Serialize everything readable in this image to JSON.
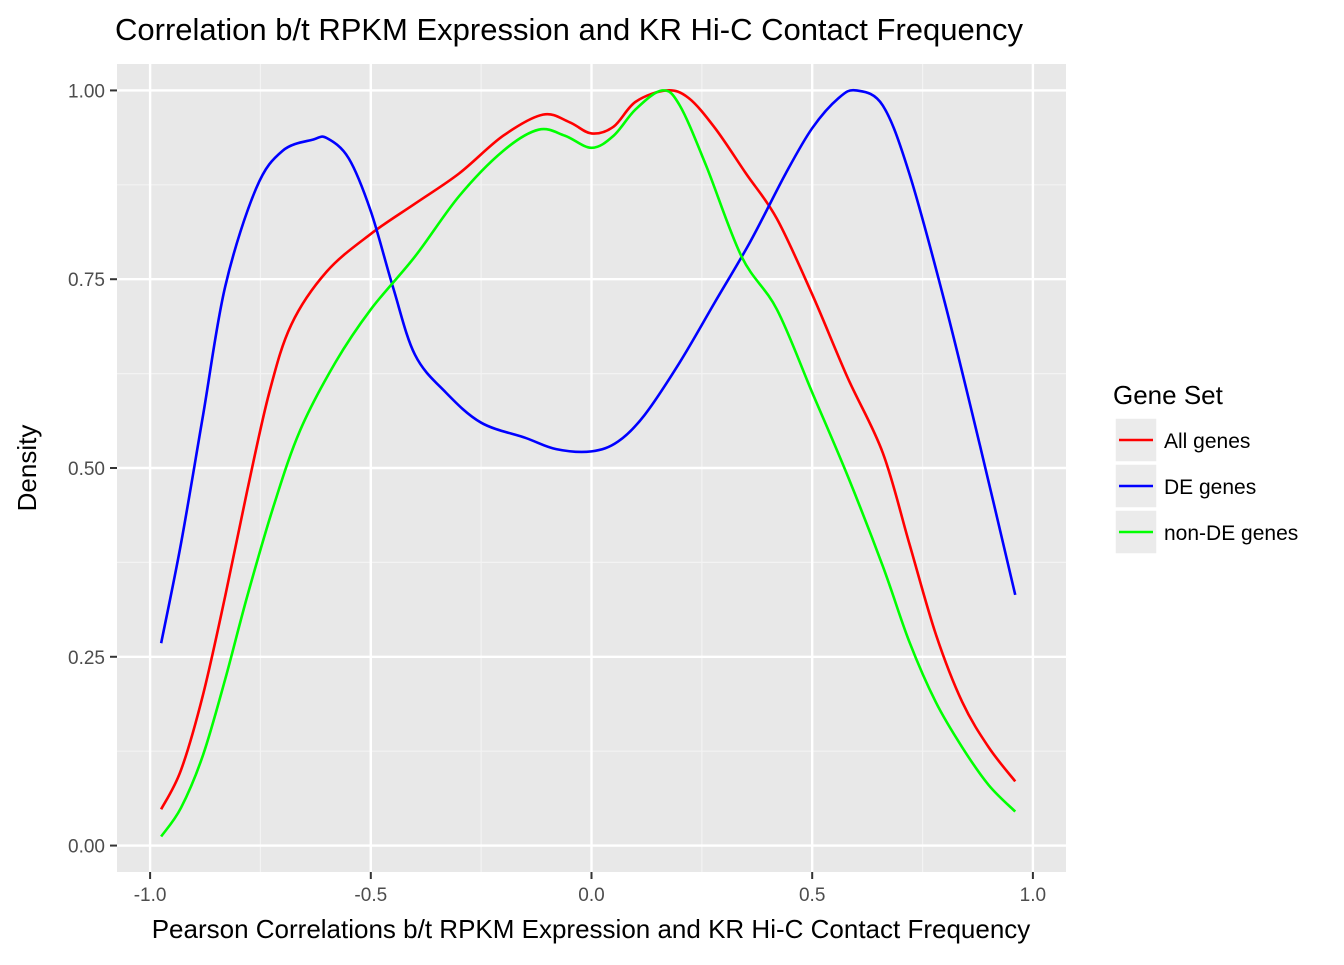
{
  "chart_data": {
    "type": "line",
    "title": "Correlation b/t RPKM Expression and KR Hi-C Contact Frequency",
    "xlabel": "Pearson Correlations b/t RPKM Expression and KR Hi-C Contact Frequency",
    "ylabel": "Density",
    "xlim": [
      -1.0,
      1.0
    ],
    "ylim": [
      -0.035,
      1.035
    ],
    "x_ticks": [
      -1.0,
      -0.5,
      0.0,
      0.5,
      1.0
    ],
    "x_tick_labels": [
      "-1.0",
      "-0.5",
      "0.0",
      "0.5",
      "1.0"
    ],
    "y_ticks": [
      0.0,
      0.25,
      0.5,
      0.75,
      1.0
    ],
    "y_tick_labels": [
      "0.00",
      "0.25",
      "0.50",
      "0.75",
      "1.00"
    ],
    "grid": true,
    "panel_background": "#e8e8e8",
    "legend": {
      "title": "Gene Set",
      "position": "right",
      "entries": [
        "All genes",
        "DE genes",
        "non-DE genes"
      ]
    },
    "series": [
      {
        "name": "All genes",
        "color": "#ff0000",
        "points": [
          [
            -0.975,
            0.048
          ],
          [
            -0.93,
            0.1
          ],
          [
            -0.88,
            0.2
          ],
          [
            -0.83,
            0.33
          ],
          [
            -0.78,
            0.47
          ],
          [
            -0.73,
            0.6
          ],
          [
            -0.68,
            0.69
          ],
          [
            -0.6,
            0.76
          ],
          [
            -0.5,
            0.81
          ],
          [
            -0.4,
            0.85
          ],
          [
            -0.3,
            0.89
          ],
          [
            -0.2,
            0.94
          ],
          [
            -0.11,
            0.968
          ],
          [
            -0.05,
            0.958
          ],
          [
            0.0,
            0.943
          ],
          [
            0.05,
            0.952
          ],
          [
            0.1,
            0.985
          ],
          [
            0.17,
            1.0
          ],
          [
            0.22,
            0.99
          ],
          [
            0.28,
            0.95
          ],
          [
            0.35,
            0.89
          ],
          [
            0.42,
            0.83
          ],
          [
            0.5,
            0.73
          ],
          [
            0.58,
            0.62
          ],
          [
            0.66,
            0.52
          ],
          [
            0.72,
            0.4
          ],
          [
            0.78,
            0.28
          ],
          [
            0.84,
            0.19
          ],
          [
            0.9,
            0.13
          ],
          [
            0.96,
            0.085
          ]
        ]
      },
      {
        "name": "DE genes",
        "color": "#0000ff",
        "points": [
          [
            -0.975,
            0.268
          ],
          [
            -0.93,
            0.4
          ],
          [
            -0.88,
            0.57
          ],
          [
            -0.83,
            0.74
          ],
          [
            -0.76,
            0.87
          ],
          [
            -0.7,
            0.92
          ],
          [
            -0.63,
            0.935
          ],
          [
            -0.6,
            0.937
          ],
          [
            -0.55,
            0.91
          ],
          [
            -0.5,
            0.84
          ],
          [
            -0.45,
            0.74
          ],
          [
            -0.4,
            0.65
          ],
          [
            -0.33,
            0.6
          ],
          [
            -0.25,
            0.56
          ],
          [
            -0.15,
            0.54
          ],
          [
            -0.08,
            0.525
          ],
          [
            0.0,
            0.522
          ],
          [
            0.06,
            0.535
          ],
          [
            0.12,
            0.57
          ],
          [
            0.2,
            0.64
          ],
          [
            0.28,
            0.72
          ],
          [
            0.36,
            0.8
          ],
          [
            0.44,
            0.89
          ],
          [
            0.5,
            0.95
          ],
          [
            0.56,
            0.99
          ],
          [
            0.6,
            1.0
          ],
          [
            0.66,
            0.98
          ],
          [
            0.72,
            0.89
          ],
          [
            0.8,
            0.72
          ],
          [
            0.88,
            0.53
          ],
          [
            0.96,
            0.332
          ]
        ]
      },
      {
        "name": "non-DE genes",
        "color": "#00ff00",
        "points": [
          [
            -0.975,
            0.012
          ],
          [
            -0.93,
            0.05
          ],
          [
            -0.88,
            0.12
          ],
          [
            -0.83,
            0.22
          ],
          [
            -0.78,
            0.33
          ],
          [
            -0.72,
            0.45
          ],
          [
            -0.66,
            0.55
          ],
          [
            -0.58,
            0.64
          ],
          [
            -0.5,
            0.71
          ],
          [
            -0.4,
            0.78
          ],
          [
            -0.3,
            0.86
          ],
          [
            -0.2,
            0.92
          ],
          [
            -0.12,
            0.948
          ],
          [
            -0.06,
            0.94
          ],
          [
            0.0,
            0.924
          ],
          [
            0.05,
            0.94
          ],
          [
            0.1,
            0.975
          ],
          [
            0.16,
            1.0
          ],
          [
            0.2,
            0.98
          ],
          [
            0.26,
            0.9
          ],
          [
            0.34,
            0.78
          ],
          [
            0.42,
            0.71
          ],
          [
            0.5,
            0.6
          ],
          [
            0.58,
            0.49
          ],
          [
            0.66,
            0.37
          ],
          [
            0.72,
            0.27
          ],
          [
            0.78,
            0.19
          ],
          [
            0.84,
            0.13
          ],
          [
            0.9,
            0.08
          ],
          [
            0.96,
            0.045
          ]
        ]
      }
    ]
  }
}
